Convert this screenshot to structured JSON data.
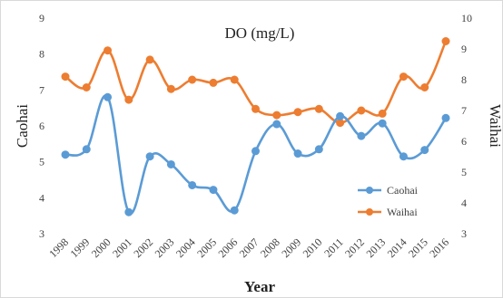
{
  "chart_data": {
    "type": "line",
    "title": "DO (mg/L)",
    "xlabel": "Year",
    "ylabel_left": "Caohai",
    "ylabel_right": "Waihai",
    "categories": [
      "1998",
      "1999",
      "2000",
      "2001",
      "2002",
      "2003",
      "2004",
      "2005",
      "2006",
      "2007",
      "2008",
      "2009",
      "2010",
      "2011",
      "2012",
      "2013",
      "2014",
      "2015",
      "2016"
    ],
    "ylim_left": [
      3,
      9
    ],
    "yticks_left": [
      3,
      4,
      5,
      6,
      7,
      8,
      9
    ],
    "ylim_right": [
      3,
      10
    ],
    "yticks_right": [
      3,
      4,
      5,
      6,
      7,
      8,
      9,
      10
    ],
    "grid": false,
    "legend_position": "lower-right",
    "series": [
      {
        "name": "Caohai",
        "axis": "left",
        "color": "#5b9bd5",
        "values": [
          5.2,
          5.35,
          6.8,
          3.6,
          5.15,
          4.93,
          4.35,
          4.22,
          3.65,
          5.3,
          6.05,
          5.23,
          5.35,
          6.27,
          5.72,
          6.07,
          5.15,
          5.33,
          6.22
        ]
      },
      {
        "name": "Waihai",
        "axis": "right",
        "color": "#ed7d31",
        "values": [
          8.1,
          7.75,
          8.95,
          7.35,
          8.65,
          7.7,
          8.0,
          7.9,
          8.0,
          7.05,
          6.85,
          6.95,
          7.05,
          6.6,
          7.0,
          6.9,
          8.1,
          7.75,
          9.25
        ]
      }
    ]
  }
}
